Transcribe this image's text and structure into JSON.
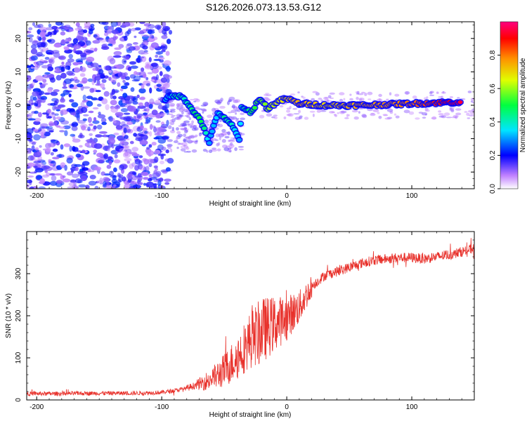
{
  "figure_title": "S126.2026.073.13.53.G12",
  "chart_data": [
    {
      "type": "heatmap",
      "title": "S126.2026.073.13.53.G12",
      "xlabel": "Height of straight line (km)",
      "ylabel": "Frequency (Hz)",
      "xlim": [
        -208,
        150
      ],
      "ylim": [
        -25,
        25
      ],
      "xticks": [
        -200,
        -100,
        0,
        100
      ],
      "xtick_labels": [
        "-200",
        "-100",
        "0",
        "100"
      ],
      "yticks": [
        -20,
        -10,
        0,
        10,
        20
      ],
      "ytick_labels": [
        "-20",
        "-10",
        "0",
        "10",
        "20"
      ],
      "colorbar": {
        "label": "Normalized spectral amplitude",
        "range": [
          0.0,
          1.0
        ],
        "ticks": [
          0.0,
          0.2,
          0.4,
          0.6,
          0.8
        ],
        "tick_labels": [
          "0.0",
          "0.2",
          "0.4",
          "0.6",
          "0.8"
        ]
      },
      "ridge_points": [
        {
          "x": -97,
          "y": 2,
          "v": 0.3
        },
        {
          "x": -88,
          "y": 3,
          "v": 0.45
        },
        {
          "x": -82,
          "y": 2,
          "v": 0.4
        },
        {
          "x": -76,
          "y": -1,
          "v": 0.45
        },
        {
          "x": -70,
          "y": -4,
          "v": 0.5
        },
        {
          "x": -66,
          "y": -7,
          "v": 0.45
        },
        {
          "x": -62,
          "y": -11,
          "v": 0.3
        },
        {
          "x": -55,
          "y": -2,
          "v": 0.35
        },
        {
          "x": -50,
          "y": -4,
          "v": 0.45
        },
        {
          "x": -44,
          "y": -6,
          "v": 0.4
        },
        {
          "x": -38,
          "y": -10,
          "v": 0.3
        },
        {
          "x": -36,
          "y": -1,
          "v": 0.4
        },
        {
          "x": -28,
          "y": -2,
          "v": 0.5
        },
        {
          "x": -22,
          "y": 2,
          "v": 0.55
        },
        {
          "x": -15,
          "y": -1,
          "v": 0.6
        },
        {
          "x": -8,
          "y": 1,
          "v": 0.65
        },
        {
          "x": 0,
          "y": 2,
          "v": 0.7
        },
        {
          "x": 10,
          "y": 0.5,
          "v": 0.75
        },
        {
          "x": 30,
          "y": 0,
          "v": 0.7
        },
        {
          "x": 60,
          "y": 0,
          "v": 0.75
        },
        {
          "x": 100,
          "y": 0.5,
          "v": 0.8
        },
        {
          "x": 140,
          "y": 1,
          "v": 0.95
        }
      ]
    },
    {
      "type": "line",
      "xlabel": "Height of straight line (km)",
      "ylabel": "SNR (10 * v/v)",
      "xlim": [
        -208,
        150
      ],
      "ylim": [
        0,
        400
      ],
      "xticks": [
        -200,
        -100,
        0,
        100
      ],
      "xtick_labels": [
        "-200",
        "-100",
        "0",
        "100"
      ],
      "yticks": [
        0,
        100,
        200,
        300
      ],
      "ytick_labels": [
        "0",
        "100",
        "200",
        "300"
      ],
      "series": [
        {
          "name": "SNR",
          "color": "#e8312b",
          "x": [
            -208,
            -180,
            -150,
            -120,
            -100,
            -90,
            -80,
            -70,
            -60,
            -50,
            -40,
            -30,
            -20,
            -10,
            0,
            10,
            20,
            30,
            40,
            50,
            60,
            70,
            80,
            90,
            100,
            110,
            120,
            130,
            140,
            150
          ],
          "y": [
            15,
            15,
            16,
            16,
            18,
            22,
            28,
            38,
            50,
            70,
            100,
            140,
            165,
            180,
            195,
            220,
            270,
            295,
            305,
            315,
            325,
            332,
            335,
            338,
            338,
            335,
            340,
            345,
            352,
            360
          ]
        }
      ]
    }
  ]
}
